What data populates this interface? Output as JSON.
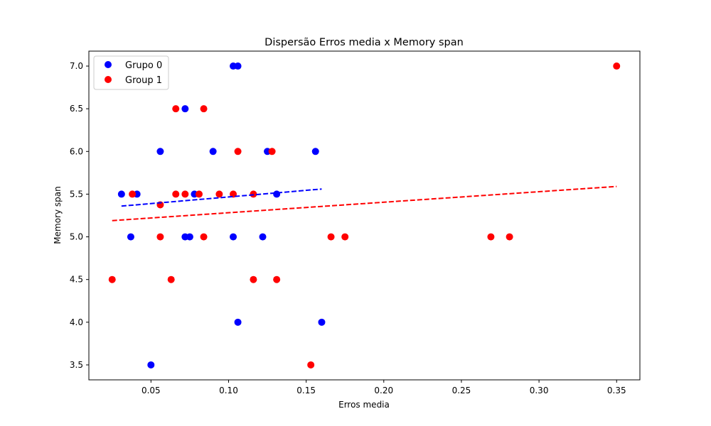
{
  "chart_data": {
    "type": "scatter",
    "title": "Dispersão Erros media x Memory span",
    "xlabel": "Erros media",
    "ylabel": "Memory span",
    "xlim": [
      0.01,
      0.365
    ],
    "ylim": [
      3.325,
      7.175
    ],
    "x_ticks": [
      0.05,
      0.1,
      0.15,
      0.2,
      0.25,
      0.3,
      0.35
    ],
    "x_tick_labels": [
      "0.05",
      "0.10",
      "0.15",
      "0.20",
      "0.25",
      "0.30",
      "0.35"
    ],
    "y_ticks": [
      3.5,
      4.0,
      4.5,
      5.0,
      5.5,
      6.0,
      6.5,
      7.0
    ],
    "y_tick_labels": [
      "3.5",
      "4.0",
      "4.5",
      "5.0",
      "5.5",
      "6.0",
      "6.5",
      "7.0"
    ],
    "grid": false,
    "legend_position": "top-left",
    "series": [
      {
        "name": "Grupo 0",
        "color": "#0000ff",
        "points": [
          [
            0.103,
            7.0
          ],
          [
            0.106,
            7.0
          ],
          [
            0.072,
            6.5
          ],
          [
            0.056,
            6.0
          ],
          [
            0.09,
            6.0
          ],
          [
            0.125,
            6.0
          ],
          [
            0.156,
            6.0
          ],
          [
            0.031,
            5.5
          ],
          [
            0.041,
            5.5
          ],
          [
            0.078,
            5.5
          ],
          [
            0.131,
            5.5
          ],
          [
            0.037,
            5.0
          ],
          [
            0.072,
            5.0
          ],
          [
            0.075,
            5.0
          ],
          [
            0.103,
            5.0
          ],
          [
            0.122,
            5.0
          ],
          [
            0.106,
            4.0
          ],
          [
            0.16,
            4.0
          ],
          [
            0.05,
            3.5
          ]
        ],
        "trend": {
          "x": [
            0.031,
            0.16
          ],
          "y": [
            5.36,
            5.56
          ]
        }
      },
      {
        "name": "Group 1",
        "color": "#ff0000",
        "points": [
          [
            0.35,
            7.0
          ],
          [
            0.066,
            6.5
          ],
          [
            0.084,
            6.5
          ],
          [
            0.106,
            6.0
          ],
          [
            0.128,
            6.0
          ],
          [
            0.038,
            5.5
          ],
          [
            0.066,
            5.5
          ],
          [
            0.072,
            5.5
          ],
          [
            0.081,
            5.5
          ],
          [
            0.094,
            5.5
          ],
          [
            0.103,
            5.5
          ],
          [
            0.116,
            5.5
          ],
          [
            0.056,
            5.375
          ],
          [
            0.056,
            5.0
          ],
          [
            0.084,
            5.0
          ],
          [
            0.166,
            5.0
          ],
          [
            0.175,
            5.0
          ],
          [
            0.269,
            5.0
          ],
          [
            0.281,
            5.0
          ],
          [
            0.025,
            4.5
          ],
          [
            0.063,
            4.5
          ],
          [
            0.116,
            4.5
          ],
          [
            0.131,
            4.5
          ],
          [
            0.153,
            3.5
          ]
        ],
        "trend": {
          "x": [
            0.025,
            0.35
          ],
          "y": [
            5.19,
            5.59
          ]
        }
      }
    ]
  }
}
